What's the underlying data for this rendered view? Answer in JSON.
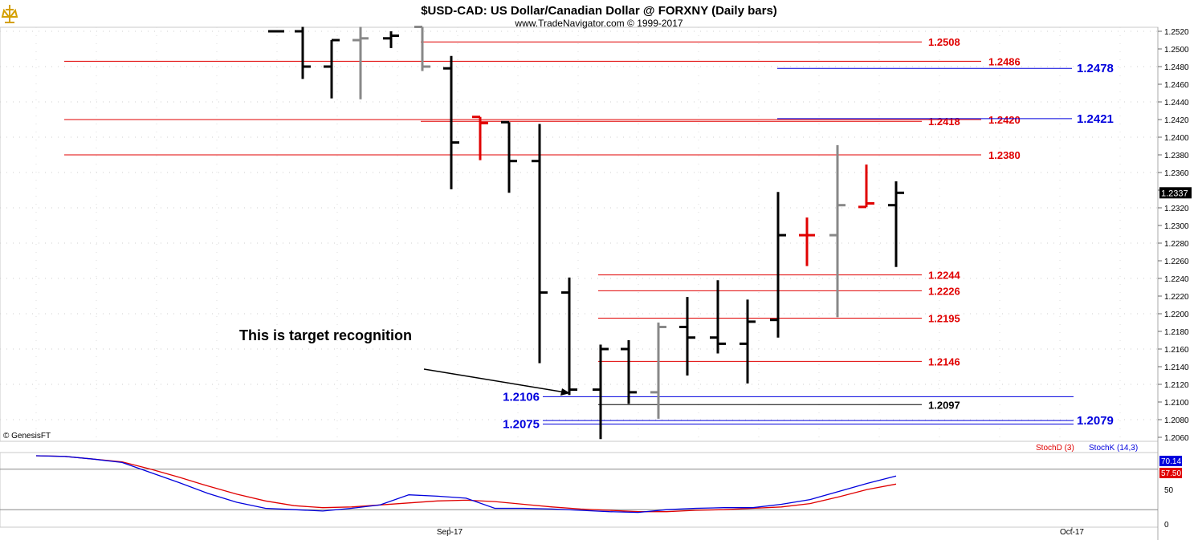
{
  "header": {
    "title": "$USD-CAD:  US Dollar/Canadian Dollar @ FORXNY  (Daily bars)",
    "subtitle": "www.TradeNavigator.com © 1999-2017"
  },
  "logo_text": "GenesisFT",
  "copyright": "© GenesisFT",
  "annotation": "This is target recognition",
  "colors": {
    "up_bar": "#000000",
    "neutral_bar": "#888888",
    "doji_bar": "#e00000",
    "red_level": "#e00000",
    "blue_level": "#0000dd",
    "black_level": "#000000",
    "stoch_d": "#e00000",
    "stoch_k": "#0000dd"
  },
  "chart_data": [
    {
      "type": "ohlc",
      "title": "$USD-CAD:  US Dollar/Canadian Dollar @ FORXNY  (Daily bars)",
      "ylim": [
        1.2055,
        1.2525
      ],
      "yticks": [
        "1.2520",
        "1.2500",
        "1.2480",
        "1.2460",
        "1.2440",
        "1.2420",
        "1.2400",
        "1.2380",
        "1.2360",
        "1.2340",
        "1.2320",
        "1.2300",
        "1.2280",
        "1.2260",
        "1.2240",
        "1.2220",
        "1.2200",
        "1.2180",
        "1.2160",
        "1.2140",
        "1.2120",
        "1.2100",
        "1.2080",
        "1.2060"
      ],
      "last_price": "1.2337",
      "bars": [
        {
          "o": 1.252,
          "h": 1.252,
          "l": 1.252,
          "c": 1.252,
          "color": "black"
        },
        {
          "o": 1.252,
          "h": 1.2525,
          "l": 1.2466,
          "c": 1.248,
          "color": "black"
        },
        {
          "o": 1.248,
          "h": 1.251,
          "l": 1.2444,
          "c": 1.251,
          "color": "black"
        },
        {
          "o": 1.251,
          "h": 1.2525,
          "l": 1.2443,
          "c": 1.2512,
          "color": "gray"
        },
        {
          "o": 1.2512,
          "h": 1.252,
          "l": 1.2501,
          "c": 1.2515,
          "color": "black"
        },
        {
          "o": 1.2525,
          "h": 1.2525,
          "l": 1.2475,
          "c": 1.248,
          "color": "gray"
        },
        {
          "o": 1.2478,
          "h": 1.2492,
          "l": 1.2341,
          "c": 1.2394,
          "color": "black"
        },
        {
          "o": 1.2423,
          "h": 1.2423,
          "l": 1.2374,
          "c": 1.2416,
          "color": "red"
        },
        {
          "o": 1.2417,
          "h": 1.2417,
          "l": 1.2337,
          "c": 1.2373,
          "color": "black"
        },
        {
          "o": 1.2373,
          "h": 1.2415,
          "l": 1.2144,
          "c": 1.2224,
          "color": "black"
        },
        {
          "o": 1.2224,
          "h": 1.2241,
          "l": 1.2108,
          "c": 1.2114,
          "color": "black"
        },
        {
          "o": 1.2114,
          "h": 1.2165,
          "l": 1.2058,
          "c": 1.216,
          "color": "black"
        },
        {
          "o": 1.216,
          "h": 1.217,
          "l": 1.2098,
          "c": 1.2111,
          "color": "black"
        },
        {
          "o": 1.2111,
          "h": 1.219,
          "l": 1.2081,
          "c": 1.2185,
          "color": "gray"
        },
        {
          "o": 1.2185,
          "h": 1.2219,
          "l": 1.213,
          "c": 1.2173,
          "color": "black"
        },
        {
          "o": 1.2173,
          "h": 1.2238,
          "l": 1.2155,
          "c": 1.2166,
          "color": "black"
        },
        {
          "o": 1.2166,
          "h": 1.2216,
          "l": 1.2121,
          "c": 1.2191,
          "color": "black"
        },
        {
          "o": 1.2193,
          "h": 1.2338,
          "l": 1.2173,
          "c": 1.2289,
          "color": "black"
        },
        {
          "o": 1.2289,
          "h": 1.2309,
          "l": 1.2254,
          "c": 1.2289,
          "color": "red"
        },
        {
          "o": 1.2289,
          "h": 1.2391,
          "l": 1.2196,
          "c": 1.2323,
          "color": "gray"
        },
        {
          "o": 1.2321,
          "h": 1.2369,
          "l": 1.2321,
          "c": 1.2325,
          "color": "red"
        },
        {
          "o": 1.2323,
          "h": 1.235,
          "l": 1.2253,
          "c": 1.2337,
          "color": "black"
        }
      ],
      "levels": [
        {
          "label": "1.2508",
          "value": 1.2508,
          "color": "red"
        },
        {
          "label": "1.2486",
          "value": 1.2486,
          "color": "red"
        },
        {
          "label": "1.2478",
          "value": 1.2478,
          "color": "blue"
        },
        {
          "label": "1.2418",
          "value": 1.2418,
          "color": "red"
        },
        {
          "label": "1.2420",
          "value": 1.242,
          "color": "red"
        },
        {
          "label": "1.2421",
          "value": 1.2421,
          "color": "blue"
        },
        {
          "label": "1.2380",
          "value": 1.238,
          "color": "red"
        },
        {
          "label": "1.2244",
          "value": 1.2244,
          "color": "red"
        },
        {
          "label": "1.2226",
          "value": 1.2226,
          "color": "red"
        },
        {
          "label": "1.2195",
          "value": 1.2195,
          "color": "red"
        },
        {
          "label": "1.2146",
          "value": 1.2146,
          "color": "red"
        },
        {
          "label": "1.2106",
          "value": 1.2106,
          "color": "blue"
        },
        {
          "label": "1.2097",
          "value": 1.2097,
          "color": "black"
        },
        {
          "label": "1.2075",
          "value": 1.2075,
          "color": "blue"
        },
        {
          "label": "1.2079",
          "value": 1.2079,
          "color": "blue"
        }
      ],
      "xticks": [
        "Sep-17",
        "Oct-17"
      ]
    },
    {
      "type": "line",
      "ylim": [
        0,
        100
      ],
      "yticks": [
        "50",
        "0"
      ],
      "series": [
        {
          "name": "StochD (3)",
          "last": "57.50",
          "values": [
            100,
            99,
            95,
            91,
            80,
            68,
            55,
            43,
            33,
            26,
            23,
            24,
            27,
            30,
            33,
            34,
            32,
            28,
            24,
            21,
            19,
            17,
            17,
            19,
            20,
            22,
            24,
            29,
            39,
            50,
            58
          ]
        },
        {
          "name": "StochK (14,3)",
          "last": "70.14",
          "values": [
            100,
            99,
            95,
            90,
            75,
            60,
            44,
            31,
            22,
            20,
            18,
            22,
            27,
            42,
            40,
            37,
            22,
            22,
            21,
            19,
            17,
            16,
            20,
            22,
            23,
            23,
            28,
            35,
            47,
            59,
            70
          ]
        }
      ]
    }
  ]
}
